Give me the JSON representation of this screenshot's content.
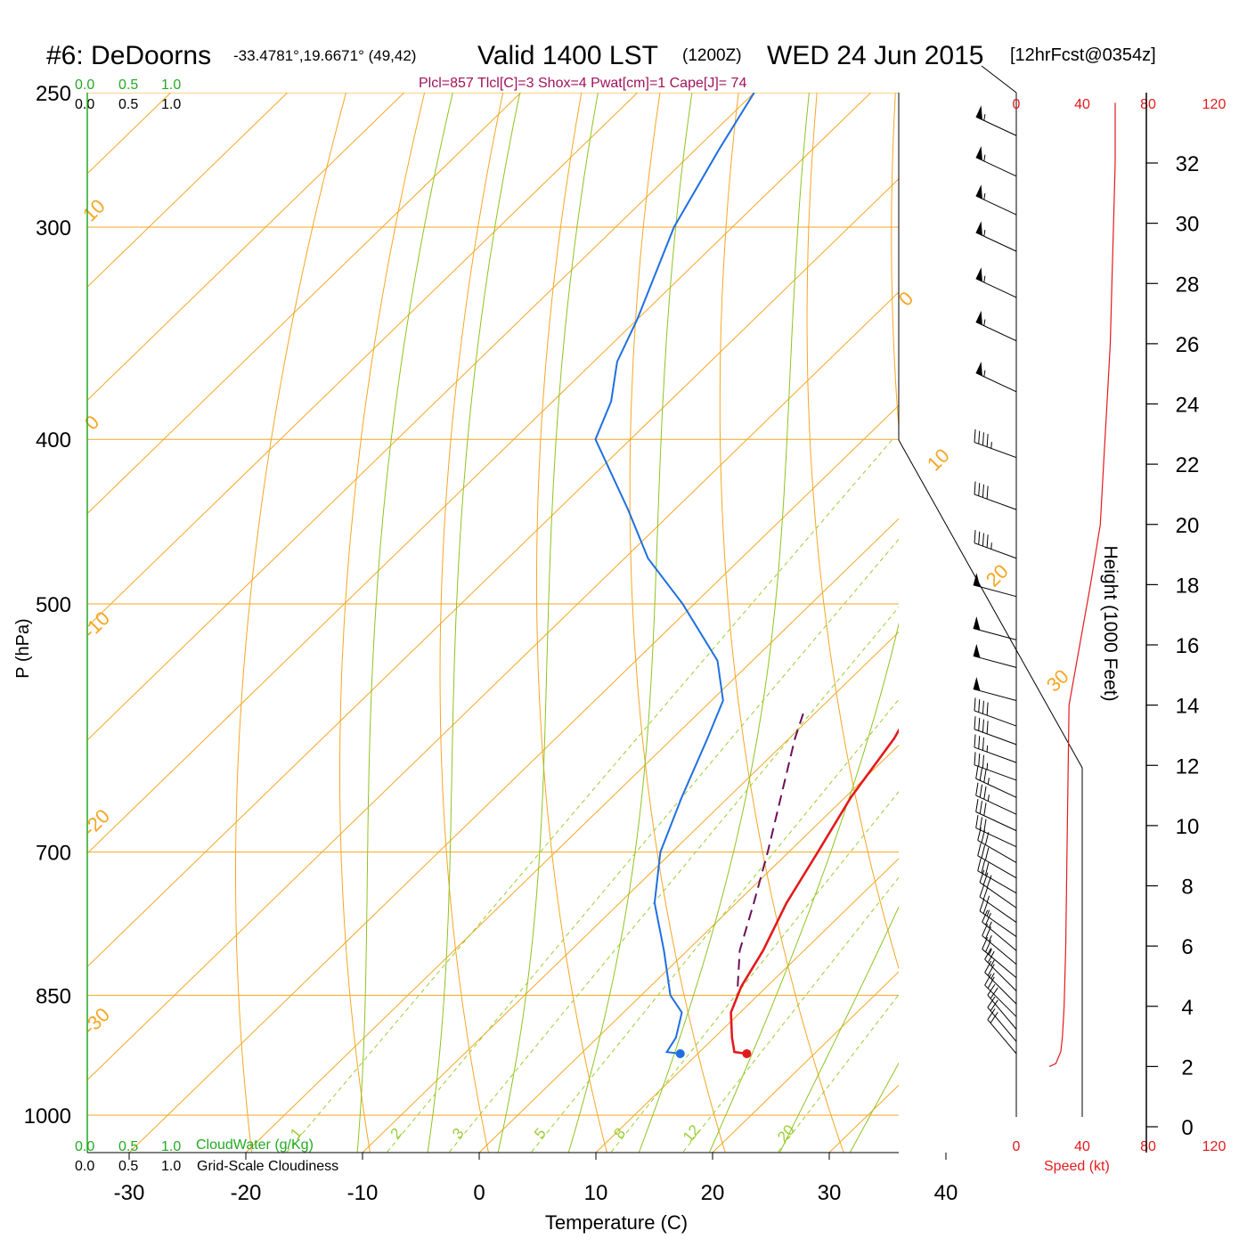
{
  "header": {
    "station": "#6: DeDoorns",
    "coords": "-33.4781°,19.6671° (49,42)",
    "valid": "Valid 1400 LST",
    "zulu": "(1200Z)",
    "date": "WED 24 Jun 2015",
    "forecast": "[12hrFcst@0354z]",
    "indices": "Plcl=857 Tlcl[C]=3 Shox=4 Pwat[cm]=1 Cape[J]= 74"
  },
  "colors": {
    "temperature": "#e31a1c",
    "dewpoint": "#1f6fe0",
    "parcel": "#6b0f5a",
    "isotherm": "#f5a623",
    "dry_adiabat": "#f5a623",
    "moist_adiabat": "#8fc31f",
    "mixing_ratio": "#9acd32",
    "cloudwater": "#22aa22",
    "speed": "#e31a1c",
    "indices": "#a0125a"
  },
  "chart_data": {
    "type": "line",
    "subtype": "skew-T log-P sounding",
    "xlabel": "Temperature (C)",
    "ylabel": "P (hPa)",
    "right_axis_label": "Height (1000 Feet)",
    "x_ticks": [
      -30,
      -20,
      -10,
      0,
      10,
      20,
      30,
      40
    ],
    "p_ticks": [
      250,
      300,
      400,
      500,
      700,
      850,
      1000
    ],
    "height_ticks": [
      0,
      2,
      4,
      6,
      8,
      10,
      12,
      14,
      16,
      18,
      20,
      22,
      24,
      26,
      28,
      30,
      32
    ],
    "speed_ticks": [
      "0",
      "40",
      "80",
      "120"
    ],
    "speed_axis_label": "Speed (kt)",
    "cloud_scale": [
      "0.0",
      "0.5",
      "1.0"
    ],
    "cloudwater_label": "CloudWater (g/Kg)",
    "cloudiness_label": "Grid-Scale Cloudiness",
    "isotherm_labels": [
      "10",
      "0",
      "-10",
      "-20",
      "-30",
      "0",
      "10",
      "20",
      "30"
    ],
    "mixing_ratio_labels": [
      "1",
      "2",
      "3",
      "5",
      "8",
      "12",
      "20"
    ],
    "temperature": [
      {
        "p": 920,
        "t": 14.2
      },
      {
        "p": 918,
        "t": 13.0
      },
      {
        "p": 900,
        "t": 11.5
      },
      {
        "p": 870,
        "t": 9.2
      },
      {
        "p": 840,
        "t": 7.8
      },
      {
        "p": 800,
        "t": 6.5
      },
      {
        "p": 750,
        "t": 4.3
      },
      {
        "p": 700,
        "t": 2.5
      },
      {
        "p": 650,
        "t": 0.5
      },
      {
        "p": 600,
        "t": -1.0
      },
      {
        "p": 560,
        "t": -3.0
      },
      {
        "p": 530,
        "t": -6.5
      },
      {
        "p": 500,
        "t": -10.0
      },
      {
        "p": 460,
        "t": -15.0
      },
      {
        "p": 420,
        "t": -20.5
      },
      {
        "p": 400,
        "t": -23.0
      },
      {
        "p": 360,
        "t": -29.0
      },
      {
        "p": 330,
        "t": -34.0
      },
      {
        "p": 300,
        "t": -38.0
      },
      {
        "p": 280,
        "t": -41.0
      },
      {
        "p": 265,
        "t": -42.5
      },
      {
        "p": 250,
        "t": -44.5
      }
    ],
    "dewpoint": [
      {
        "p": 920,
        "t": 8.5
      },
      {
        "p": 918,
        "t": 7.2
      },
      {
        "p": 900,
        "t": 6.7
      },
      {
        "p": 870,
        "t": 5.0
      },
      {
        "p": 850,
        "t": 2.5
      },
      {
        "p": 800,
        "t": -2.0
      },
      {
        "p": 750,
        "t": -7.0
      },
      {
        "p": 700,
        "t": -11.0
      },
      {
        "p": 650,
        "t": -14.0
      },
      {
        "p": 600,
        "t": -17.0
      },
      {
        "p": 570,
        "t": -19.0
      },
      {
        "p": 540,
        "t": -23.0
      },
      {
        "p": 500,
        "t": -31.0
      },
      {
        "p": 470,
        "t": -38.0
      },
      {
        "p": 440,
        "t": -44.0
      },
      {
        "p": 400,
        "t": -53.0
      },
      {
        "p": 380,
        "t": -55.0
      },
      {
        "p": 360,
        "t": -58.0
      },
      {
        "p": 340,
        "t": -60.0
      },
      {
        "p": 300,
        "t": -65.0
      },
      {
        "p": 270,
        "t": -68.0
      },
      {
        "p": 250,
        "t": -70.0
      }
    ],
    "parcel": [
      {
        "p": 840,
        "t": 7.5
      },
      {
        "p": 800,
        "t": 4.5
      },
      {
        "p": 750,
        "t": 1.5
      },
      {
        "p": 700,
        "t": -1.8
      },
      {
        "p": 650,
        "t": -5.5
      },
      {
        "p": 600,
        "t": -9.5
      },
      {
        "p": 580,
        "t": -11.0
      }
    ],
    "wind_barbs": [
      {
        "p": 920,
        "dir": 320,
        "kt": 20
      },
      {
        "p": 905,
        "dir": 320,
        "kt": 20
      },
      {
        "p": 890,
        "dir": 320,
        "kt": 20
      },
      {
        "p": 875,
        "dir": 315,
        "kt": 20
      },
      {
        "p": 860,
        "dir": 315,
        "kt": 25
      },
      {
        "p": 845,
        "dir": 315,
        "kt": 25
      },
      {
        "p": 830,
        "dir": 310,
        "kt": 25
      },
      {
        "p": 815,
        "dir": 310,
        "kt": 25
      },
      {
        "p": 800,
        "dir": 310,
        "kt": 25
      },
      {
        "p": 785,
        "dir": 305,
        "kt": 25
      },
      {
        "p": 770,
        "dir": 305,
        "kt": 25
      },
      {
        "p": 755,
        "dir": 305,
        "kt": 30
      },
      {
        "p": 740,
        "dir": 300,
        "kt": 30
      },
      {
        "p": 725,
        "dir": 300,
        "kt": 30
      },
      {
        "p": 710,
        "dir": 300,
        "kt": 30
      },
      {
        "p": 695,
        "dir": 295,
        "kt": 30
      },
      {
        "p": 680,
        "dir": 295,
        "kt": 30
      },
      {
        "p": 665,
        "dir": 295,
        "kt": 35
      },
      {
        "p": 650,
        "dir": 295,
        "kt": 35
      },
      {
        "p": 635,
        "dir": 290,
        "kt": 35
      },
      {
        "p": 620,
        "dir": 290,
        "kt": 35
      },
      {
        "p": 605,
        "dir": 290,
        "kt": 40
      },
      {
        "p": 590,
        "dir": 290,
        "kt": 40
      },
      {
        "p": 570,
        "dir": 285,
        "kt": 50
      },
      {
        "p": 545,
        "dir": 285,
        "kt": 50
      },
      {
        "p": 525,
        "dir": 285,
        "kt": 50
      },
      {
        "p": 495,
        "dir": 285,
        "kt": 50
      },
      {
        "p": 470,
        "dir": 290,
        "kt": 45
      },
      {
        "p": 440,
        "dir": 290,
        "kt": 40
      },
      {
        "p": 410,
        "dir": 290,
        "kt": 45
      },
      {
        "p": 375,
        "dir": 295,
        "kt": 55
      },
      {
        "p": 350,
        "dir": 295,
        "kt": 55
      },
      {
        "p": 330,
        "dir": 295,
        "kt": 55
      },
      {
        "p": 310,
        "dir": 295,
        "kt": 55
      },
      {
        "p": 295,
        "dir": 295,
        "kt": 55
      },
      {
        "p": 280,
        "dir": 295,
        "kt": 55
      },
      {
        "p": 265,
        "dir": 295,
        "kt": 55
      }
    ],
    "wind_speed_profile": [
      {
        "h": 2.0,
        "kt": 20
      },
      {
        "h": 2.1,
        "kt": 24
      },
      {
        "h": 2.5,
        "kt": 27
      },
      {
        "h": 3.0,
        "kt": 28
      },
      {
        "h": 4.0,
        "kt": 29
      },
      {
        "h": 6.0,
        "kt": 30
      },
      {
        "h": 10.0,
        "kt": 31
      },
      {
        "h": 14.0,
        "kt": 32
      },
      {
        "h": 18.0,
        "kt": 45
      },
      {
        "h": 20.0,
        "kt": 51
      },
      {
        "h": 22.0,
        "kt": 53
      },
      {
        "h": 24.0,
        "kt": 55
      },
      {
        "h": 26.0,
        "kt": 57
      },
      {
        "h": 28.0,
        "kt": 58
      },
      {
        "h": 30.0,
        "kt": 59
      },
      {
        "h": 32.0,
        "kt": 60
      },
      {
        "h": 34.0,
        "kt": 60
      }
    ]
  }
}
